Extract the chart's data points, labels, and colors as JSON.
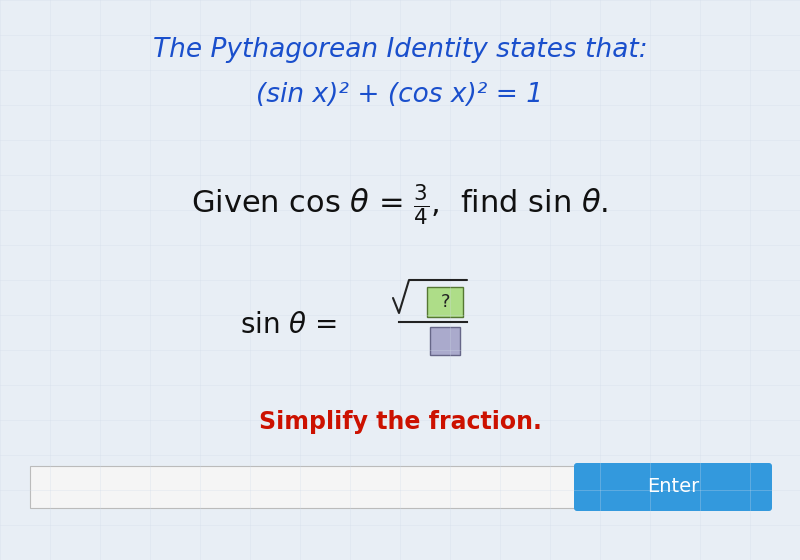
{
  "bg_color": "#e8eef5",
  "title_line1": "The Pythagorean Identity states that:",
  "title_line2": "(sin x)² + (cos x)² = 1",
  "title_color": "#1a4fcc",
  "title_fontsize": 19,
  "given_text_color": "#111111",
  "given_fontsize": 22,
  "sin_label_color": "#111111",
  "sin_fontsize": 20,
  "simplify_text": "Simplify the fraction.",
  "simplify_color": "#cc1100",
  "simplify_fontsize": 17,
  "enter_bg": "#3399dd",
  "enter_text": "Enter",
  "enter_text_color": "#ffffff",
  "input_bg": "#f5f5f5",
  "fraction_num_bg": "#aedd88",
  "fraction_den_bg": "#aaaacc"
}
